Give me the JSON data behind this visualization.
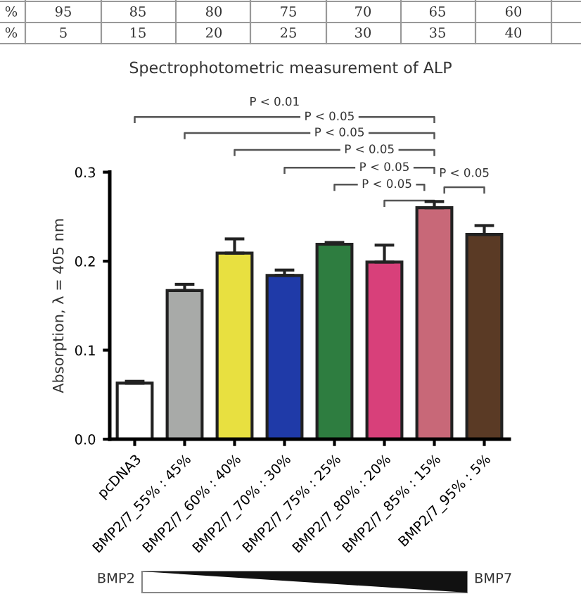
{
  "chart_data": {
    "type": "bar",
    "title": "Spectrophotometric measurement of ALP",
    "ylabel": "Absorption, λ = 405 nm",
    "categories": [
      "pcDNA3",
      "BMP2/7_55% : 45%",
      "BMP2/7_60% : 40%",
      "BMP2/7_70% : 30%",
      "BMP2/7_75% : 25%",
      "BMP2/7_80% : 20%",
      "BMP2/7_85% : 15%",
      "BMP2/7_95% : 5%"
    ],
    "values": [
      0.063,
      0.167,
      0.209,
      0.184,
      0.219,
      0.199,
      0.26,
      0.23
    ],
    "errors": [
      0.002,
      0.007,
      0.016,
      0.006,
      0.002,
      0.019,
      0.007,
      0.01
    ],
    "colors": [
      "#ffffff",
      "#a8aaa8",
      "#e8e040",
      "#1f3aa8",
      "#2e7d40",
      "#d8407a",
      "#c86878",
      "#5a3a25"
    ],
    "ylim": [
      0,
      0.3
    ],
    "yticks": [
      {
        "value": 0,
        "label": "0.0"
      },
      0.1,
      0.2,
      0.3
    ],
    "grid": false,
    "legend": false,
    "annotations": [
      "%",
      "95",
      "85",
      "80",
      "75",
      "70",
      "65",
      "60",
      "%",
      "5",
      "15",
      "20",
      "25",
      "30",
      "35",
      "40",
      "P < 0.01",
      "P < 0.05",
      "P < 0.05",
      "P < 0.05",
      "P < 0.05",
      "P < 0.05",
      "P < 0.05",
      "BMP2",
      "BMP7"
    ]
  }
}
